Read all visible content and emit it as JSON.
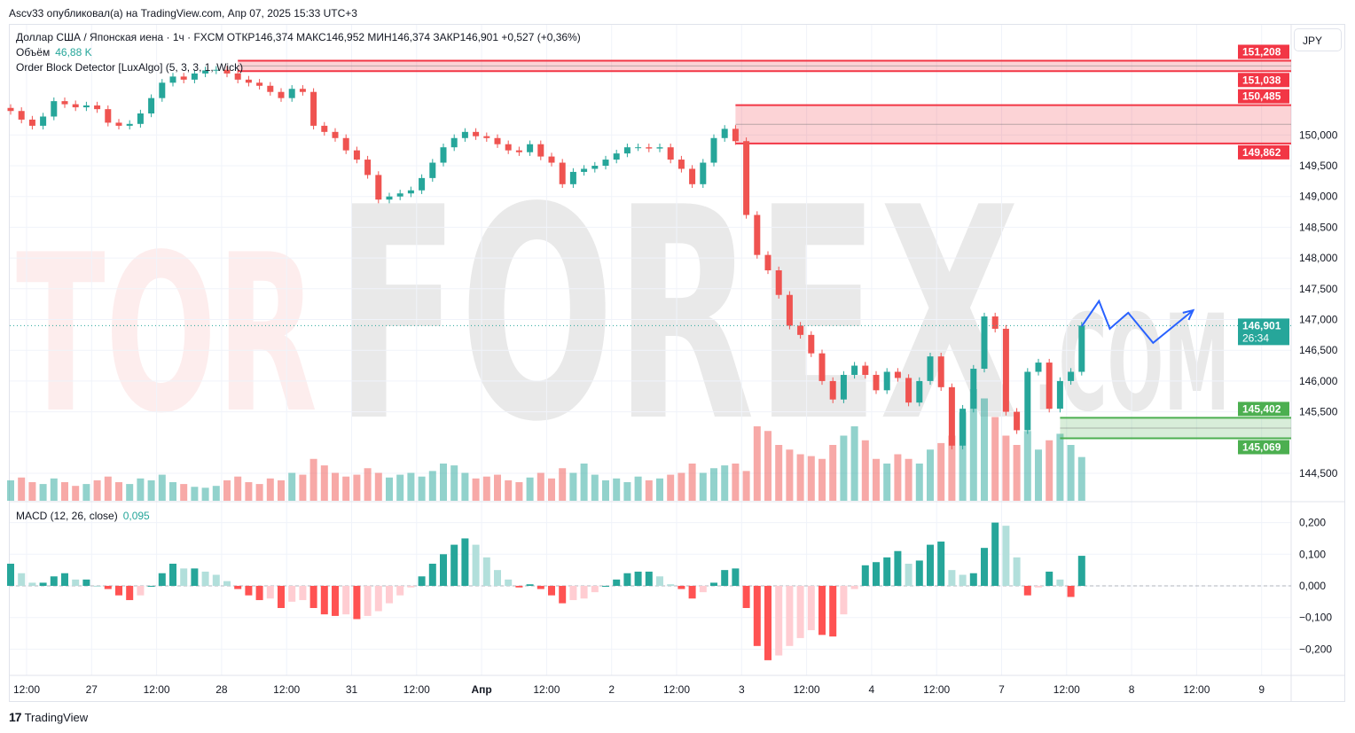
{
  "publisher_line": "Ascv33 опубликовал(а) на TradingView.com, Апр 07, 2025 15:33 UTC+3",
  "legend": {
    "symbol_line": "Доллар США / Японская иена · 1ч · FXCM  ОТКР146,374  МАКС146,952  МИН146,374  ЗАКР146,901  +0,527 (+0,36%)",
    "volume_label": "Объём",
    "volume_value": "46,88 K",
    "indicator_label": "Order Block Detector [LuxAlgo] (5, 3, 3, 1, Wick)",
    "macd_label": "MACD (12, 26, close)",
    "macd_value": "0,095"
  },
  "currency_button": "JPY",
  "watermark": {
    "text_main": "TORFOREX",
    "text_sub": ".COM"
  },
  "footer": {
    "logo_mark": "17",
    "brand": "TradingView"
  },
  "colors": {
    "up": "#26a69a",
    "down": "#ef5350",
    "order_block_bear": "#f23645",
    "order_block_bull": "#4caf50",
    "projection": "#2962ff"
  },
  "chart_data": [
    {
      "type": "candlestick",
      "pane": "price",
      "closes": [
        150.39,
        150.25,
        150.15,
        150.3,
        150.55,
        150.5,
        150.45,
        150.48,
        150.42,
        150.2,
        150.15,
        150.18,
        150.35,
        150.6,
        150.85,
        150.95,
        150.9,
        151.0,
        151.05,
        151.06,
        151.0,
        150.9,
        150.85,
        150.8,
        150.7,
        150.6,
        150.75,
        150.7,
        150.15,
        150.05,
        149.95,
        149.75,
        149.6,
        149.35,
        148.95,
        149.0,
        149.05,
        149.1,
        149.3,
        149.55,
        149.8,
        149.95,
        150.05,
        149.98,
        149.95,
        149.85,
        149.75,
        149.72,
        149.85,
        149.65,
        149.55,
        149.2,
        149.4,
        149.45,
        149.5,
        149.6,
        149.7,
        149.8,
        149.8,
        149.78,
        149.8,
        149.6,
        149.45,
        149.2,
        149.55,
        149.95,
        150.1,
        149.9,
        148.7,
        148.05,
        147.8,
        147.4,
        146.9,
        146.75,
        146.45,
        146.0,
        145.7,
        146.1,
        146.25,
        146.1,
        145.85,
        146.15,
        146.05,
        145.65,
        146.0,
        146.4,
        145.9,
        144.95,
        145.55,
        146.2,
        147.05,
        146.85,
        145.5,
        145.2,
        146.15,
        146.3,
        145.55,
        146.0,
        146.15,
        146.901
      ],
      "last_price": "146,901",
      "countdown": "26:34",
      "y_ticks": [
        "150,000",
        "149,500",
        "149,000",
        "148,500",
        "148,000",
        "147,500",
        "147,000",
        "146,500",
        "146,000",
        "145,500",
        "144,500"
      ],
      "y_tick_values": [
        150.0,
        149.5,
        149.0,
        148.5,
        148.0,
        147.5,
        147.0,
        146.5,
        146.0,
        145.5,
        144.5
      ],
      "order_blocks": [
        {
          "kind": "bearish",
          "top": 151.208,
          "bottom": 151.038,
          "top_label": "151,208",
          "bottom_label": "151,038",
          "start_index": 21
        },
        {
          "kind": "bearish",
          "top": 150.485,
          "bottom": 149.862,
          "top_label": "150,485",
          "bottom_label": "149,862",
          "start_index": 67
        },
        {
          "kind": "bullish",
          "top": 145.402,
          "bottom": 145.069,
          "top_label": "145,402",
          "bottom_label": "145,069",
          "start_index": 97
        }
      ],
      "projection_path": [
        [
          99,
          146.89
        ],
        [
          100.6,
          147.3
        ],
        [
          101.6,
          146.85
        ],
        [
          103.3,
          147.11
        ],
        [
          105.6,
          146.62
        ],
        [
          109.3,
          147.15
        ]
      ]
    },
    {
      "type": "bar",
      "pane": "volume",
      "unit": "K",
      "values": [
        22,
        25,
        20,
        18,
        24,
        20,
        16,
        18,
        22,
        26,
        20,
        18,
        24,
        22,
        28,
        20,
        18,
        15,
        14,
        16,
        22,
        26,
        20,
        18,
        24,
        22,
        30,
        28,
        45,
        38,
        30,
        26,
        28,
        35,
        30,
        25,
        28,
        30,
        26,
        32,
        40,
        38,
        30,
        24,
        26,
        28,
        22,
        20,
        25,
        30,
        24,
        35,
        30,
        40,
        28,
        22,
        24,
        20,
        26,
        22,
        24,
        28,
        30,
        40,
        30,
        35,
        38,
        40,
        32,
        80,
        75,
        60,
        55,
        50,
        48,
        45,
        60,
        70,
        80,
        65,
        45,
        40,
        50,
        45,
        40,
        55,
        62,
        70,
        95,
        120,
        110,
        90,
        70,
        60,
        75,
        55,
        65,
        72,
        60,
        47
      ]
    },
    {
      "type": "bar",
      "pane": "macd_histogram",
      "values": [
        0.07,
        0.04,
        0.01,
        0.01,
        0.03,
        0.04,
        0.02,
        0.02,
        0.0,
        -0.01,
        -0.03,
        -0.045,
        -0.03,
        0.0,
        0.04,
        0.07,
        0.055,
        0.055,
        0.045,
        0.035,
        0.015,
        -0.01,
        -0.03,
        -0.045,
        -0.04,
        -0.07,
        -0.05,
        -0.045,
        -0.07,
        -0.09,
        -0.095,
        -0.09,
        -0.105,
        -0.095,
        -0.08,
        -0.055,
        -0.03,
        -0.005,
        0.03,
        0.07,
        0.1,
        0.13,
        0.15,
        0.13,
        0.09,
        0.05,
        0.02,
        -0.005,
        0.005,
        -0.01,
        -0.03,
        -0.055,
        -0.045,
        -0.04,
        -0.02,
        0.0,
        0.02,
        0.04,
        0.045,
        0.045,
        0.03,
        0.005,
        -0.01,
        -0.04,
        -0.02,
        0.01,
        0.05,
        0.055,
        -0.07,
        -0.19,
        -0.235,
        -0.22,
        -0.19,
        -0.165,
        -0.14,
        -0.155,
        -0.16,
        -0.09,
        -0.01,
        0.065,
        0.075,
        0.09,
        0.11,
        0.07,
        0.08,
        0.13,
        0.14,
        0.05,
        0.035,
        0.04,
        0.12,
        0.2,
        0.19,
        0.09,
        -0.03,
        -0.005,
        0.045,
        0.02,
        -0.035,
        0.095
      ],
      "y_ticks": [
        "0,200",
        "0,100",
        "0,000",
        "−0,100",
        "−0,200"
      ],
      "y_tick_values": [
        0.2,
        0.1,
        0.0,
        -0.1,
        -0.2
      ]
    }
  ],
  "x_ticks": [
    "12:00",
    "27",
    "12:00",
    "28",
    "12:00",
    "31",
    "12:00",
    "Апр",
    "12:00",
    "2",
    "12:00",
    "3",
    "12:00",
    "4",
    "12:00",
    "7",
    "12:00",
    "8",
    "12:00",
    "9"
  ]
}
